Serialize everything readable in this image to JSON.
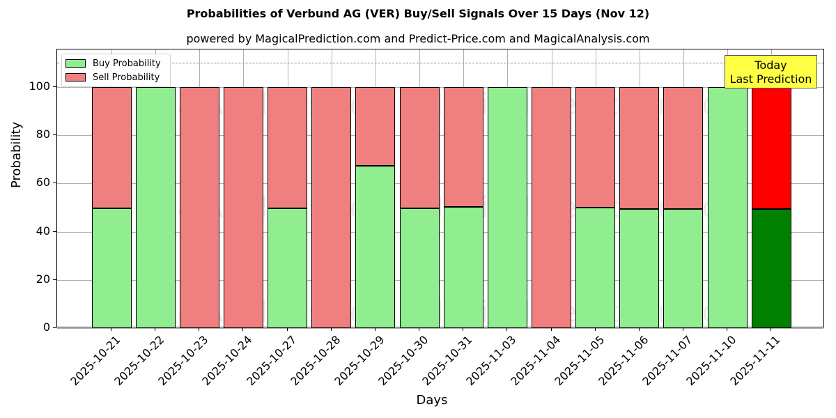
{
  "header": {
    "title": "Probabilities of Verbund AG (VER) Buy/Sell Signals Over 15 Days (Nov 12)",
    "subtitle": "powered by MagicalPrediction.com and Predict-Price.com and MagicalAnalysis.com"
  },
  "axes": {
    "xlabel": "Days",
    "ylabel": "Probability",
    "yticks": [
      "0",
      "20",
      "40",
      "60",
      "80",
      "100"
    ]
  },
  "legend": {
    "buy_label": "Buy Probability",
    "sell_label": "Sell Probability"
  },
  "annotation": {
    "line1": "Today",
    "line2": "Last Prediction"
  },
  "watermarks": [
    "MagicalAnalysis.com",
    "MagicalPrediction.com"
  ],
  "colors": {
    "buy": "#90ee90",
    "sell": "#f08080",
    "today_buy": "#008000",
    "today_sell": "#ff0000",
    "annotation_bg": "#ffff44"
  },
  "chart_data": {
    "type": "bar",
    "stacked": true,
    "title": "Probabilities of Verbund AG (VER) Buy/Sell Signals Over 15 Days (Nov 12)",
    "subtitle": "powered by MagicalPrediction.com and Predict-Price.com and MagicalAnalysis.com",
    "xlabel": "Days",
    "ylabel": "Probability",
    "ylim": [
      0,
      115
    ],
    "yticks": [
      0,
      20,
      40,
      60,
      80,
      100
    ],
    "reference_line": 110,
    "grid": true,
    "legend_position": "upper left",
    "categories": [
      "2025-10-21",
      "2025-10-22",
      "2025-10-23",
      "2025-10-24",
      "2025-10-27",
      "2025-10-28",
      "2025-10-29",
      "2025-10-30",
      "2025-10-31",
      "2025-11-03",
      "2025-11-04",
      "2025-11-05",
      "2025-11-06",
      "2025-11-07",
      "2025-11-10",
      "2025-11-11"
    ],
    "series": [
      {
        "name": "Buy Probability",
        "values": [
          49.6,
          100,
          0,
          0,
          49.6,
          0,
          67.3,
          49.8,
          50.2,
          100,
          0,
          50.1,
          49.4,
          49.4,
          100,
          49.5
        ]
      },
      {
        "name": "Sell Probability",
        "values": [
          50.4,
          0,
          100,
          100,
          50.4,
          100,
          32.7,
          50.2,
          49.8,
          0,
          100,
          49.9,
          50.6,
          50.6,
          0,
          50.5
        ]
      }
    ],
    "annotations": [
      {
        "text": "Today\nLast Prediction",
        "x": "2025-11-11"
      }
    ]
  }
}
